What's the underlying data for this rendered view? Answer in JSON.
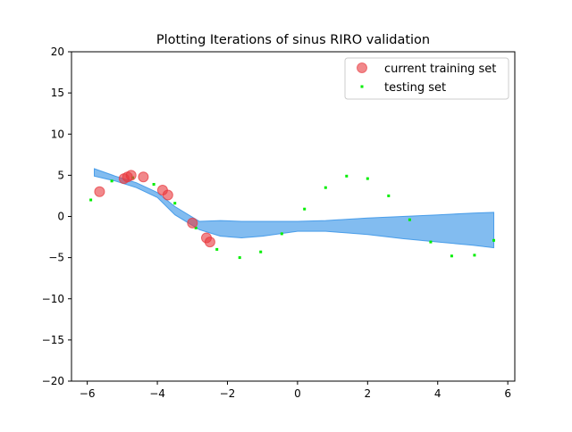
{
  "chart_data": {
    "type": "scatter",
    "title": "Plotting Iterations of sinus RIRO validation",
    "xlabel": "",
    "ylabel": "",
    "xlim": [
      -6.45,
      6.2
    ],
    "ylim": [
      -20,
      20
    ],
    "x_ticks": [
      -6,
      -4,
      -2,
      0,
      2,
      4,
      6
    ],
    "y_ticks": [
      -20,
      -15,
      -10,
      -5,
      0,
      5,
      10,
      15,
      20
    ],
    "x_tick_labels": [
      "−6",
      "−4",
      "−2",
      "0",
      "2",
      "4",
      "6"
    ],
    "y_tick_labels": [
      "−20",
      "−15",
      "−10",
      "−5",
      "0",
      "5",
      "10",
      "15",
      "20"
    ],
    "grid": false,
    "legend_position": "top-right",
    "band": {
      "color": "#2e8fe6",
      "x": [
        -5.8,
        -5.2,
        -4.6,
        -4.0,
        -3.5,
        -2.8,
        -2.2,
        -1.6,
        -1.0,
        0.0,
        0.8,
        2.0,
        3.0,
        4.0,
        5.0,
        5.6
      ],
      "upper": [
        5.8,
        4.9,
        4.1,
        2.9,
        1.2,
        -0.6,
        -0.5,
        -0.6,
        -0.6,
        -0.6,
        -0.5,
        -0.2,
        0.0,
        0.2,
        0.4,
        0.5
      ],
      "lower": [
        4.9,
        4.3,
        3.5,
        2.3,
        0.2,
        -1.6,
        -2.4,
        -2.6,
        -2.4,
        -1.8,
        -1.8,
        -2.2,
        -2.7,
        -3.1,
        -3.5,
        -3.8
      ]
    },
    "series": [
      {
        "name": "current training set",
        "color": "#e8383d",
        "marker": "large-circle",
        "points": [
          [
            -5.65,
            3.0
          ],
          [
            -4.95,
            4.6
          ],
          [
            -4.85,
            4.8
          ],
          [
            -4.75,
            5.0
          ],
          [
            -4.4,
            4.8
          ],
          [
            -3.85,
            3.2
          ],
          [
            -3.7,
            2.6
          ],
          [
            -3.0,
            -0.8
          ],
          [
            -2.6,
            -2.6
          ],
          [
            -2.5,
            -3.1
          ]
        ]
      },
      {
        "name": "testing set",
        "color": "#00ee00",
        "marker": "small-point",
        "points": [
          [
            -5.9,
            2.0
          ],
          [
            -5.3,
            4.3
          ],
          [
            -4.7,
            4.7
          ],
          [
            -4.1,
            3.9
          ],
          [
            -3.5,
            1.6
          ],
          [
            -2.9,
            -1.4
          ],
          [
            -2.3,
            -4.0
          ],
          [
            -1.65,
            -5.0
          ],
          [
            -1.05,
            -4.3
          ],
          [
            -0.45,
            -2.1
          ],
          [
            0.2,
            0.9
          ],
          [
            0.8,
            3.5
          ],
          [
            1.4,
            4.9
          ],
          [
            2.0,
            4.6
          ],
          [
            2.6,
            2.5
          ],
          [
            3.2,
            -0.4
          ],
          [
            3.8,
            -3.1
          ],
          [
            4.4,
            -4.8
          ],
          [
            5.05,
            -4.7
          ],
          [
            5.6,
            -2.9
          ]
        ]
      }
    ]
  }
}
